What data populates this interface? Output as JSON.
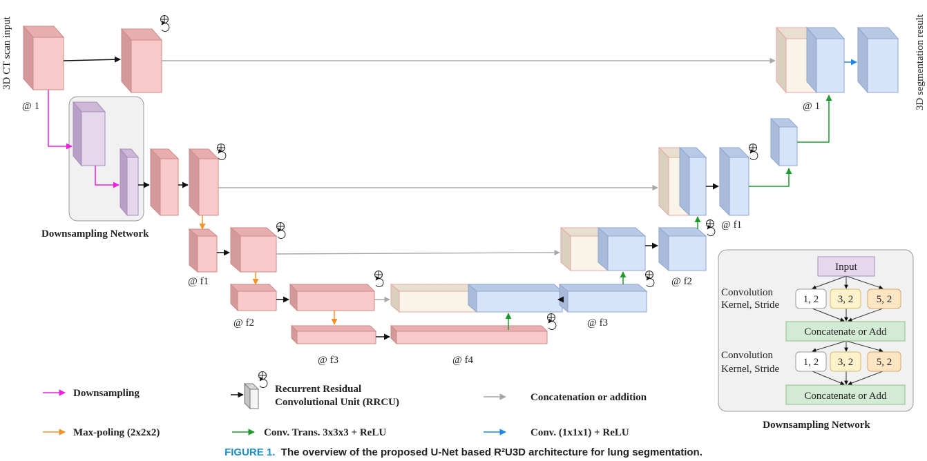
{
  "input_label": "3D CT scan input",
  "output_label": "3D segmentation result",
  "levels": {
    "l1": "@ 1",
    "f1": "@ f1",
    "f2": "@ f2",
    "f3": "@ f3",
    "f4": "@ f4",
    "out1": "@ 1"
  },
  "downsampling_network_label": "Downsampling Network",
  "inset": {
    "input": "Input",
    "conv_label_1": "Convolution",
    "conv_label_2": "Kernel, Stride",
    "k1": "1, 2",
    "k2": "3, 2",
    "k3": "5, 2",
    "concat": "Concatenate or Add",
    "title": "Downsampling Network"
  },
  "legend": {
    "downsampling": "Downsampling",
    "maxpool": "Max-poling (2x2x2)",
    "rrcu_line1": "Recurrent Residual",
    "rrcu_line2": "Convolutional Unit (RRCU)",
    "conv_trans": "Conv. Trans. 3x3x3 + ReLU",
    "concat": "Concatenation or addition",
    "conv1x1": "Conv. (1x1x1) + ReLU"
  },
  "caption": {
    "figure": "FIGURE 1.",
    "text": "The overview of the proposed U-Net based R²U3D architecture for lung segmentation."
  },
  "colors": {
    "pink_front": "#f7c9c9",
    "pink_top": "#e8aeae",
    "pink_side": "#d49a9a",
    "blue_front": "#d6e4fa",
    "blue_top": "#b8c9e6",
    "blue_side": "#a9bbdb",
    "cream_front": "#faf4e8",
    "purple_front": "#e6d8ec",
    "magenta": "#ee1fe0",
    "orange": "#f39325",
    "green": "#1c9a2b",
    "gray": "#a8a8a8",
    "blue_arrow": "#1e88e5"
  }
}
